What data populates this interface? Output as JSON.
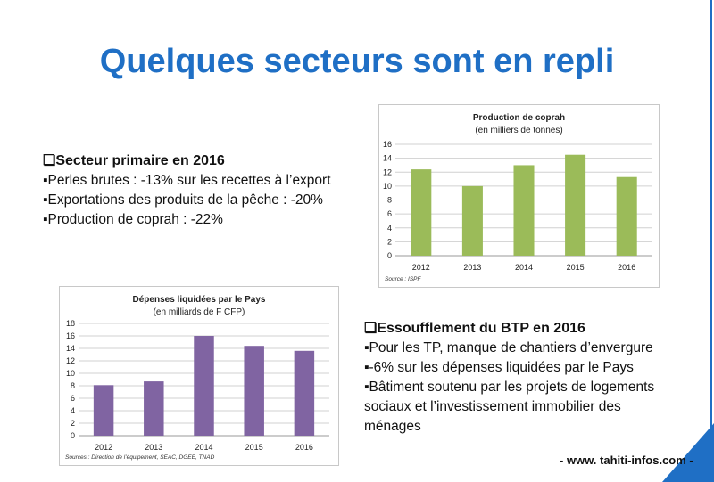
{
  "title": "Quelques secteurs sont en repli",
  "primary": {
    "heading": "❏Secteur primaire en 2016",
    "items": [
      "▪Perles brutes : -13% sur les recettes à l’export",
      "▪Exportations des produits de la pêche : -20%",
      "▪Production de coprah : -22%"
    ]
  },
  "btp": {
    "heading": "❏Essoufflement du BTP en 2016",
    "items": [
      "▪Pour les TP, manque de chantiers d’envergure",
      "▪-6% sur les dépenses liquidées par le Pays",
      "▪Bâtiment soutenu par les projets de logements sociaux et l’investissement immobilier des ménages"
    ]
  },
  "footer": "- www. tahiti-infos.com -",
  "colors": {
    "accent": "#1f6fc5",
    "coprah_bar": "#9bbb59",
    "depenses_bar": "#8064a2"
  },
  "chart_data": [
    {
      "type": "bar",
      "title": "Production de coprah",
      "subtitle": "(en milliers de tonnes)",
      "categories": [
        "2012",
        "2013",
        "2014",
        "2015",
        "2016"
      ],
      "values": [
        12.4,
        10.0,
        13.0,
        14.5,
        11.3
      ],
      "ylim": [
        0,
        16
      ],
      "yticks": [
        0,
        2,
        4,
        6,
        8,
        10,
        12,
        14,
        16
      ],
      "source": "Source : ISPF",
      "grid": true
    },
    {
      "type": "bar",
      "title": "Dépenses liquidées par le Pays",
      "subtitle": "(en milliards de F CFP)",
      "categories": [
        "2012",
        "2013",
        "2014",
        "2015",
        "2016"
      ],
      "values": [
        8.1,
        8.7,
        16.0,
        14.4,
        13.6
      ],
      "ylim": [
        0,
        18
      ],
      "yticks": [
        0,
        2,
        4,
        6,
        8,
        10,
        12,
        14,
        16,
        18
      ],
      "source": "Sources : Direction de l’équipement, SEAC, DGEE, TNAD",
      "grid": true
    }
  ]
}
